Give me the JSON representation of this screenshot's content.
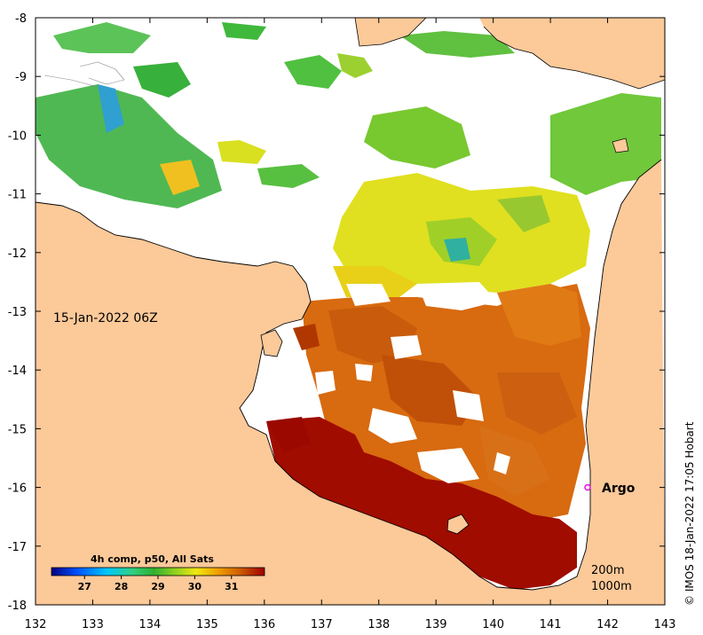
{
  "map": {
    "timestamp": "15-Jan-2022 06Z",
    "x_ticks": [
      "132",
      "133",
      "134",
      "135",
      "136",
      "137",
      "138",
      "139",
      "140",
      "141",
      "142",
      "143"
    ],
    "y_ticks": [
      "-8",
      "-9",
      "-10",
      "-11",
      "-12",
      "-13",
      "-14",
      "-15",
      "-16",
      "-17",
      "-18"
    ],
    "x_range": [
      132,
      143
    ],
    "y_range": [
      -18,
      -8
    ],
    "argo": {
      "label": "Argo",
      "lon": 141.65,
      "lat": -16.0,
      "color": "#e81ce8"
    },
    "contour_labels": [
      "200m",
      "1000m"
    ],
    "credit": "© IMOS 18-Jan-2022 17:05 Hobart",
    "land_color": "#fcc999",
    "colorbar": {
      "title": "4h comp, p50, All Sats",
      "tick_labels": [
        "27",
        "28",
        "29",
        "30",
        "31"
      ],
      "tick_values": [
        27,
        28,
        29,
        30,
        31
      ],
      "range": [
        26.1,
        31.9
      ],
      "colors": [
        "#00007f",
        "#0050ff",
        "#00c8ff",
        "#30d080",
        "#30b030",
        "#90d020",
        "#f0e810",
        "#f0a000",
        "#d06000",
        "#a00000"
      ]
    }
  }
}
